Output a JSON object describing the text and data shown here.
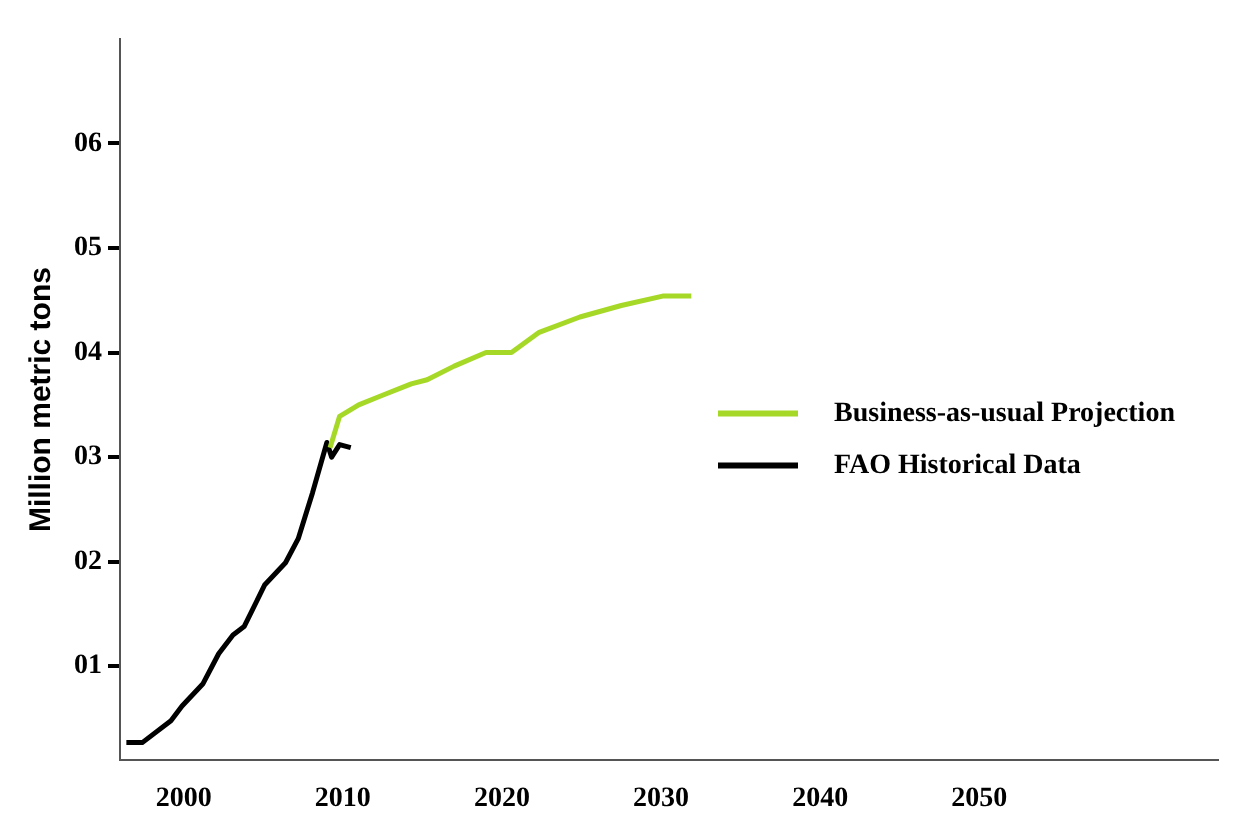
{
  "chart_data": {
    "type": "line",
    "ylabel": "Million metric tons",
    "xlim": [
      1996,
      2065
    ],
    "xticks": [
      2000,
      2010,
      2020,
      2030,
      2040,
      2050
    ],
    "ylim": [
      0.1,
      7
    ],
    "yticks": [
      {
        "value": 1,
        "label": "01"
      },
      {
        "value": 2,
        "label": "02"
      },
      {
        "value": 3,
        "label": "03"
      },
      {
        "value": 4,
        "label": "04"
      },
      {
        "value": 5,
        "label": "05"
      },
      {
        "value": 6,
        "label": "06"
      }
    ],
    "grid": false,
    "legend": "right",
    "marker": "none",
    "line_style": "solid",
    "series": [
      {
        "name": "Business-as-usual Projection",
        "color": "#a6d927",
        "x": [
          2009.2,
          2009.8,
          2011,
          2012.3,
          2014.3,
          2015.3,
          2017,
          2019,
          2020.6,
          2022.3,
          2024.9,
          2027.5,
          2030.1,
          2031.9
        ],
        "values": [
          3.09,
          3.39,
          3.5,
          3.58,
          3.7,
          3.74,
          3.87,
          4,
          4,
          4.19,
          4.34,
          4.45,
          4.54,
          4.54
        ]
      },
      {
        "name": "FAO Historical Data",
        "color": "#000000",
        "x": [
          1996.4,
          1997.4,
          1999.2,
          1999.9,
          2001.2,
          2002.2,
          2003.1,
          2003.8,
          2005.1,
          2006.4,
          2007.2,
          2008.1,
          2009,
          2009.3,
          2009.8,
          2010.5
        ],
        "values": [
          0.27,
          0.27,
          0.48,
          0.62,
          0.83,
          1.12,
          1.3,
          1.38,
          1.78,
          1.99,
          2.22,
          2.66,
          3.14,
          3,
          3.12,
          3.09
        ]
      }
    ]
  }
}
